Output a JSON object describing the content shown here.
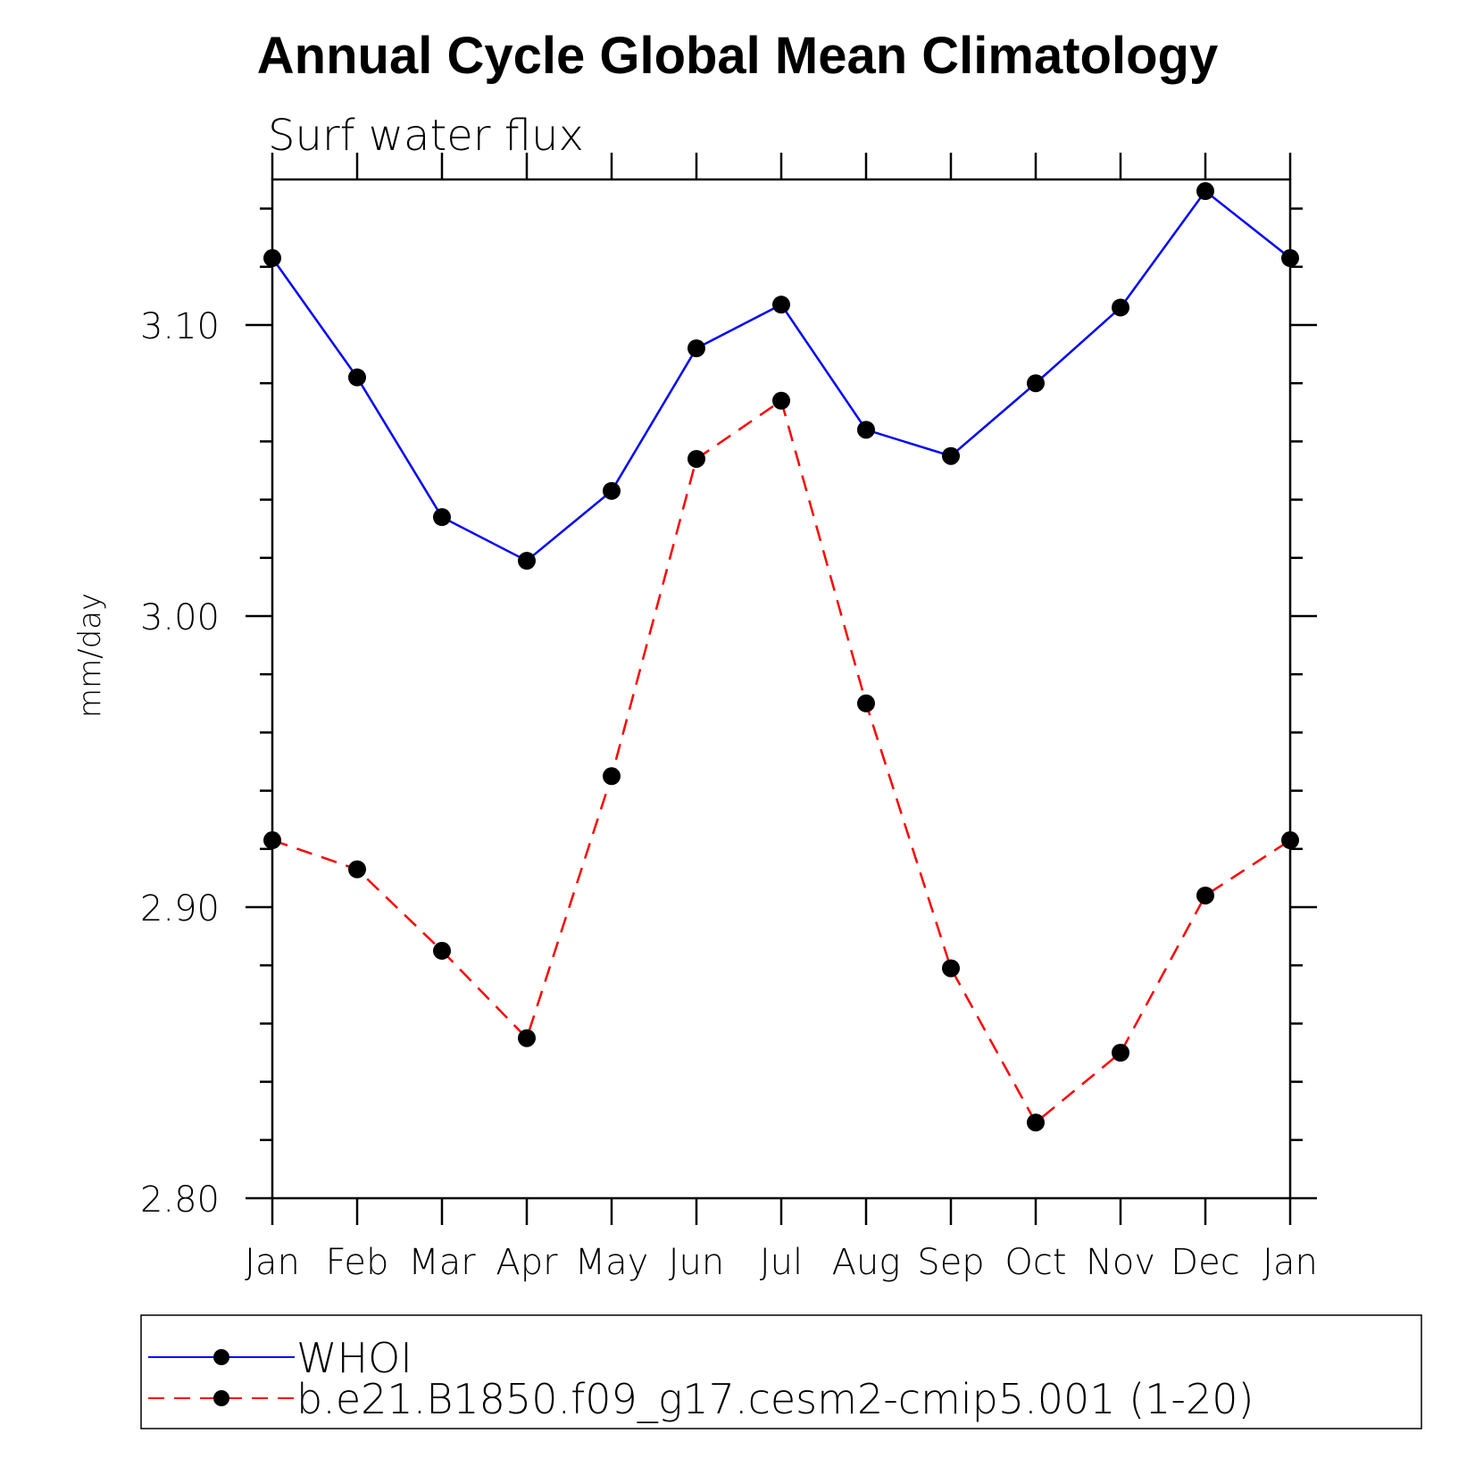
{
  "chart_data": {
    "type": "line",
    "title": "Annual Cycle Global Mean Climatology",
    "subtitle": "Surf water flux",
    "xlabel": "",
    "ylabel": "mm/day",
    "categories": [
      "Jan",
      "Feb",
      "Mar",
      "Apr",
      "May",
      "Jun",
      "Jul",
      "Aug",
      "Sep",
      "Oct",
      "Nov",
      "Dec",
      "Jan"
    ],
    "ylim": [
      2.8,
      3.15
    ],
    "yticks": [
      2.8,
      2.9,
      3.0,
      3.1
    ],
    "ytick_labels": [
      "2.80",
      "2.90",
      "3.00",
      "3.10"
    ],
    "series": [
      {
        "name": "WHOI",
        "color": "#0000ff",
        "style": "solid",
        "values": [
          3.123,
          3.082,
          3.034,
          3.019,
          3.043,
          3.092,
          3.107,
          3.064,
          3.055,
          3.08,
          3.106,
          3.146,
          3.123
        ]
      },
      {
        "name": "b.e21.B1850.f09_g17.cesm2-cmip5.001 (1-20)",
        "color": "#ff0000",
        "style": "dashed",
        "values": [
          2.923,
          2.913,
          2.885,
          2.855,
          2.945,
          3.054,
          3.074,
          2.97,
          2.879,
          2.826,
          2.85,
          2.904,
          2.923
        ]
      }
    ],
    "legend": "bottom",
    "grid": false
  }
}
